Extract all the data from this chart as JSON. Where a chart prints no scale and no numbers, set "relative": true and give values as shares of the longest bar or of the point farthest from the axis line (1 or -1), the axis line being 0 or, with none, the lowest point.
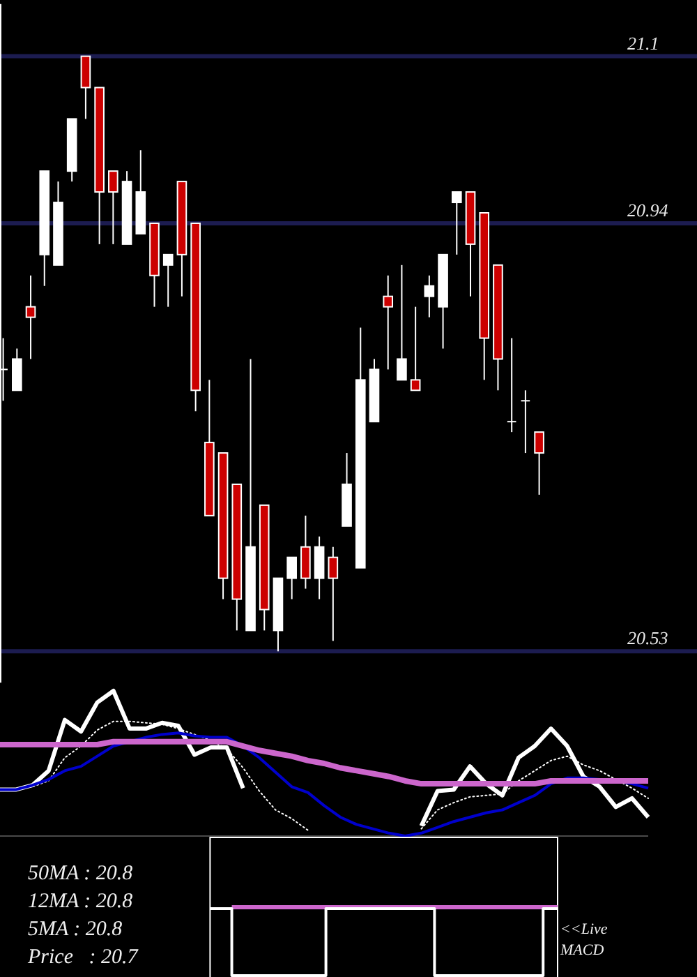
{
  "chart_data": [
    {
      "type": "candlestick",
      "categories": [
        null,
        null,
        null,
        null,
        null,
        null,
        null,
        null,
        null,
        null,
        null,
        null,
        null,
        null,
        null,
        null,
        null,
        null,
        null,
        null,
        null,
        null,
        null,
        null,
        null,
        null,
        null,
        null,
        null,
        null,
        null,
        null,
        null,
        null,
        null,
        null,
        null,
        null,
        null,
        null
      ],
      "ohlc": [
        [
          20.8,
          20.83,
          20.77,
          20.8
        ],
        [
          20.78,
          20.82,
          20.78,
          20.81
        ],
        [
          20.86,
          20.89,
          20.81,
          20.85
        ],
        [
          20.91,
          20.99,
          20.88,
          20.99
        ],
        [
          20.9,
          20.98,
          20.9,
          20.96
        ],
        [
          20.99,
          21.04,
          20.98,
          21.04
        ],
        [
          21.1,
          21.1,
          21.04,
          21.07
        ],
        [
          21.07,
          21.07,
          20.92,
          20.97
        ],
        [
          20.99,
          20.99,
          20.92,
          20.97
        ],
        [
          20.92,
          20.99,
          20.92,
          20.98
        ],
        [
          20.93,
          21.01,
          20.93,
          20.97
        ],
        [
          20.94,
          20.94,
          20.86,
          20.89
        ],
        [
          20.9,
          20.91,
          20.86,
          20.91
        ],
        [
          20.98,
          20.98,
          20.87,
          20.91
        ],
        [
          20.94,
          20.94,
          20.76,
          20.78
        ],
        [
          20.73,
          20.79,
          20.66,
          20.66
        ],
        [
          20.72,
          20.72,
          20.58,
          20.6
        ],
        [
          20.69,
          20.69,
          20.55,
          20.58
        ],
        [
          20.55,
          20.81,
          20.55,
          20.63
        ],
        [
          20.67,
          20.67,
          20.55,
          20.57
        ],
        [
          20.55,
          20.6,
          20.53,
          20.6
        ],
        [
          20.6,
          20.62,
          20.58,
          20.62
        ],
        [
          20.63,
          20.66,
          20.59,
          20.6
        ],
        [
          20.6,
          20.64,
          20.58,
          20.63
        ],
        [
          20.62,
          20.63,
          20.54,
          20.6
        ],
        [
          20.65,
          20.72,
          20.65,
          20.69
        ],
        [
          20.61,
          20.84,
          20.61,
          20.79
        ],
        [
          20.75,
          20.81,
          20.75,
          20.8
        ],
        [
          20.87,
          20.89,
          20.8,
          20.86
        ],
        [
          20.79,
          20.9,
          20.79,
          20.81
        ],
        [
          20.79,
          20.86,
          20.78,
          20.78
        ],
        [
          20.87,
          20.89,
          20.85,
          20.88
        ],
        [
          20.86,
          20.91,
          20.82,
          20.91
        ],
        [
          20.96,
          20.97,
          20.91,
          20.97
        ],
        [
          20.97,
          20.97,
          20.87,
          20.92
        ],
        [
          20.95,
          20.95,
          20.79,
          20.83
        ],
        [
          20.9,
          20.9,
          20.78,
          20.81
        ],
        [
          20.75,
          20.83,
          20.74,
          20.75
        ],
        [
          20.77,
          20.78,
          20.72,
          20.77
        ],
        [
          20.74,
          20.74,
          20.68,
          20.72
        ]
      ],
      "colors": [
        "#ffffff",
        "#ffffff",
        "#cc0000",
        "#ffffff",
        "#ffffff",
        "#ffffff",
        "#cc0000",
        "#cc0000",
        "#cc0000",
        "#ffffff",
        "#ffffff",
        "#cc0000",
        "#ffffff",
        "#cc0000",
        "#cc0000",
        "#cc0000",
        "#cc0000",
        "#cc0000",
        "#ffffff",
        "#cc0000",
        "#ffffff",
        "#ffffff",
        "#cc0000",
        "#ffffff",
        "#cc0000",
        "#ffffff",
        "#ffffff",
        "#ffffff",
        "#cc0000",
        "#ffffff",
        "#cc0000",
        "#ffffff",
        "#ffffff",
        "#ffffff",
        "#cc0000",
        "#cc0000",
        "#cc0000",
        "#ffffff",
        "#ffffff",
        "#cc0000"
      ],
      "ylim": [
        20.5,
        21.15
      ],
      "yticks": [
        20.53,
        20.94,
        21.1
      ],
      "grid": "y",
      "tick_labels": "y"
    },
    {
      "type": "line",
      "relative": true,
      "categories": [
        null,
        null,
        null,
        null,
        null,
        null,
        null,
        null,
        null,
        null,
        null,
        null,
        null,
        null,
        null,
        null,
        null,
        null,
        null,
        null,
        null,
        null,
        null,
        null,
        null,
        null,
        null,
        null,
        null,
        null,
        null,
        null,
        null,
        null,
        null,
        null,
        null,
        null,
        null,
        null,
        null
      ],
      "series": [
        {
          "color": "#ffffff",
          "values": [
            0.32,
            0.32,
            0.35,
            0.45,
            0.8,
            0.72,
            0.92,
            1,
            0.74,
            0.74,
            0.78,
            0.76,
            0.56,
            0.61,
            0.61,
            0.33,
            null,
            null,
            null,
            null,
            null,
            null,
            null,
            null,
            null,
            null,
            0.07,
            0.31,
            0.32,
            0.48,
            0.36,
            0.28,
            0.54,
            0.62,
            0.74,
            0.62,
            0.41,
            0.34,
            0.2,
            0.26,
            0.13
          ]
        },
        {
          "color": "#ffffff",
          "line_style": "dotted",
          "values": [
            0.32,
            0.32,
            0.34,
            0.38,
            0.54,
            0.62,
            0.73,
            0.79,
            0.79,
            0.78,
            0.77,
            0.74,
            0.7,
            0.66,
            0.6,
            0.47,
            0.31,
            0.18,
            0.12,
            0.04,
            null,
            null,
            null,
            null,
            null,
            null,
            0.05,
            0.18,
            0.23,
            0.27,
            0.28,
            0.29,
            0.38,
            0.45,
            0.52,
            0.55,
            0.49,
            0.45,
            0.39,
            0.33,
            0.26
          ]
        },
        {
          "color": "#0000cc",
          "values": [
            0.32,
            0.32,
            0.35,
            0.39,
            0.45,
            0.48,
            0.55,
            0.62,
            0.65,
            0.68,
            0.7,
            0.71,
            0.69,
            0.68,
            0.68,
            0.62,
            0.54,
            0.44,
            0.34,
            0.3,
            0.21,
            0.13,
            0.08,
            0.05,
            0.02,
            0,
            0.02,
            0.06,
            0.1,
            0.13,
            0.16,
            0.18,
            0.23,
            0.28,
            0.36,
            0.4,
            0.4,
            0.39,
            0.38,
            0.36,
            0.33
          ]
        },
        {
          "color": "#cc66cc",
          "values": [
            0.63,
            0.63,
            0.63,
            0.63,
            0.63,
            0.63,
            0.63,
            0.65,
            0.65,
            0.65,
            0.65,
            0.65,
            0.65,
            0.65,
            0.65,
            0.62,
            0.59,
            0.57,
            0.55,
            0.52,
            0.5,
            0.47,
            0.45,
            0.43,
            0.41,
            0.38,
            0.36,
            0.36,
            0.36,
            0.36,
            0.36,
            0.36,
            0.36,
            0.36,
            0.38,
            0.38,
            0.38,
            0.38,
            0.38,
            0.38,
            0.38
          ]
        }
      ],
      "tick_labels": false
    },
    {
      "type": "step",
      "relative": true,
      "categories": [
        null,
        null,
        null,
        null,
        null,
        null,
        null,
        null,
        null,
        null,
        null,
        null,
        null,
        null,
        null,
        null,
        null,
        null,
        null,
        null,
        null,
        null,
        null,
        null,
        null,
        null,
        null,
        null,
        null,
        null,
        null,
        null,
        null,
        null,
        null,
        null,
        null,
        null,
        null,
        null,
        null,
        null,
        null,
        null,
        null,
        null,
        null,
        null,
        null
      ],
      "series": [
        {
          "color": "#cc66cc",
          "values": [
            null,
            null,
            null,
            1,
            1,
            1,
            1,
            1,
            1,
            1,
            1,
            1,
            1,
            1,
            1,
            1,
            1,
            1,
            1,
            1,
            1,
            1,
            1,
            1,
            1,
            1,
            1,
            1,
            1,
            1,
            1,
            1,
            1,
            1,
            1,
            1,
            1,
            1,
            1,
            1,
            1,
            1,
            1,
            1,
            1,
            1,
            1,
            1,
            1
          ]
        },
        {
          "color": "#ffffff",
          "values": [
            0.98,
            0.98,
            0.98,
            0,
            0,
            0,
            0,
            0,
            0,
            0,
            0,
            0,
            0,
            0,
            0,
            0,
            0.98,
            0.98,
            0.98,
            0.98,
            0.98,
            0.98,
            0.98,
            0.98,
            0.98,
            0.98,
            0.98,
            0.98,
            0.98,
            0.98,
            0.98,
            0,
            0,
            0,
            0,
            0,
            0,
            0,
            0,
            0,
            0,
            0,
            0,
            0,
            0,
            0,
            0.98,
            0.98,
            0.98
          ]
        }
      ],
      "annotations": [
        "50MA : 20.8",
        "12MA : 20.8",
        "5MA : 20.8",
        "Price   : 20.7",
        "<<Live MACD"
      ],
      "tick_labels": false
    }
  ]
}
